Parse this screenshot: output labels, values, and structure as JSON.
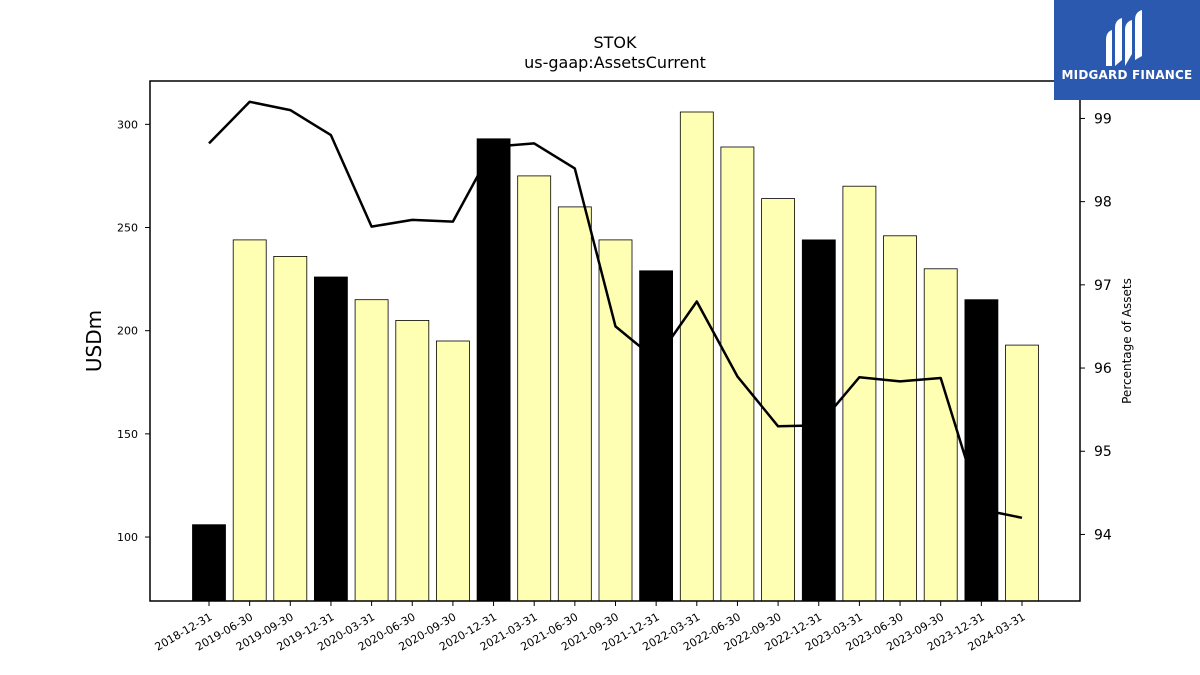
{
  "logo": {
    "text": "MIDGARD FINANCE"
  },
  "colors": {
    "bar_light": "#ffffb3",
    "bar_dark": "#000000",
    "line": "#000000",
    "logo_bg": "#2b59b0"
  },
  "chart_data": {
    "type": "bar",
    "title": "STOK",
    "subtitle": "us-gaap:AssetsCurrent",
    "ylabel": "USDm",
    "y2label": "Percentage of Assets",
    "categories": [
      "2018-12-31",
      "2019-06-30",
      "2019-09-30",
      "2019-12-31",
      "2020-03-31",
      "2020-06-30",
      "2020-09-30",
      "2020-12-31",
      "2021-03-31",
      "2021-06-30",
      "2021-09-30",
      "2021-12-31",
      "2022-03-31",
      "2022-06-30",
      "2022-09-30",
      "2022-12-31",
      "2023-03-31",
      "2023-06-30",
      "2023-09-30",
      "2023-12-31",
      "2024-03-31"
    ],
    "series": [
      {
        "type": "bar",
        "values": [
          106,
          244,
          236,
          226,
          215,
          205,
          195,
          293,
          275,
          260,
          244,
          229,
          306,
          289,
          264,
          244,
          270,
          246,
          230,
          215,
          193
        ],
        "highlight": [
          true,
          false,
          false,
          true,
          false,
          false,
          false,
          true,
          false,
          false,
          false,
          true,
          false,
          false,
          false,
          true,
          false,
          false,
          false,
          true,
          false
        ]
      },
      {
        "type": "line",
        "axis": "right",
        "values": [
          98.7,
          99.2,
          99.1,
          98.8,
          97.7,
          97.78,
          97.76,
          98.66,
          98.7,
          98.4,
          96.5,
          96.1,
          96.8,
          95.9,
          95.3,
          95.31,
          95.89,
          95.84,
          95.88,
          94.3,
          94.2
        ]
      }
    ],
    "ylim": [
      69,
      321
    ],
    "y2lim": [
      93.2,
      99.45
    ],
    "yticks": [
      100,
      150,
      200,
      250,
      300
    ],
    "y2ticks": [
      94,
      95,
      96,
      97,
      98,
      99
    ],
    "grid": false,
    "legend": "none"
  }
}
